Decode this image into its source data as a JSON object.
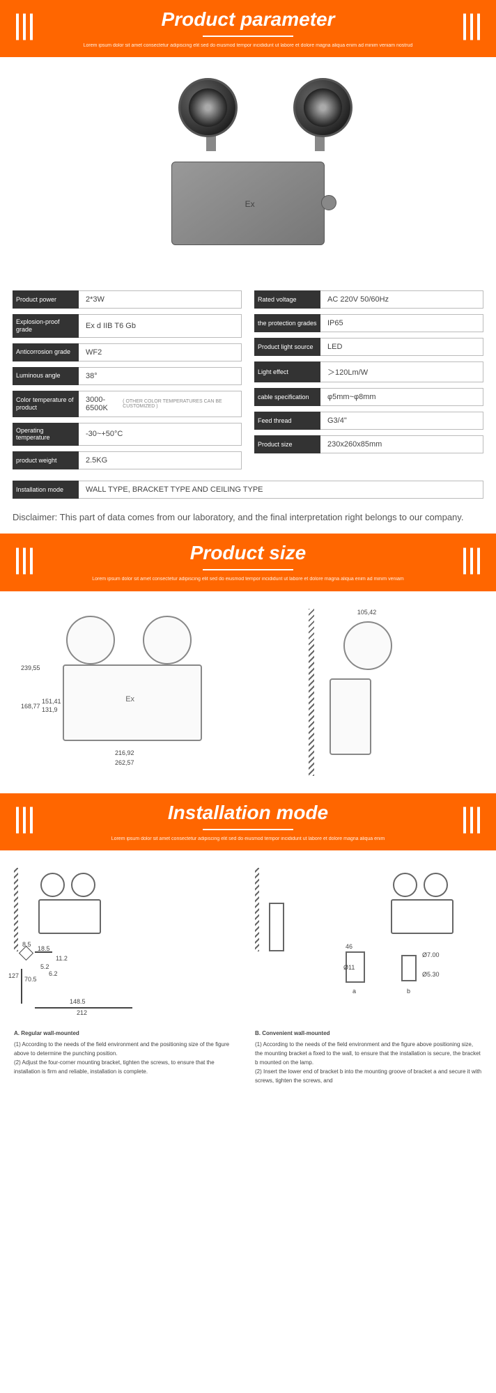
{
  "headers": {
    "parameter": {
      "title": "Product parameter",
      "subtitle": "Lorem ipsum dolor sit amet consectetur adipiscing elit sed do eiusmod tempor incididunt ut labore et dolore magna aliqua enim ad minim veniam nostrud"
    },
    "size": {
      "title": "Product size",
      "subtitle": "Lorem ipsum dolor sit amet consectetur adipiscing elit sed do eiusmod tempor incididunt ut labore et dolore magna aliqua enim ad minim veniam"
    },
    "install": {
      "title": "Installation mode",
      "subtitle": "Lorem ipsum dolor sit amet consectetur adipiscing elit sed do eiusmod tempor incididunt ut labore et dolore magna aliqua enim"
    }
  },
  "colors": {
    "accent": "#ff6600",
    "label_bg": "#333333"
  },
  "specs_left": [
    {
      "label": "Product power",
      "value": "2*3W"
    },
    {
      "label": "Explosion-proof grade",
      "value": "Ex d IIB T6 Gb"
    },
    {
      "label": "Anticorrosion grade",
      "value": "WF2"
    },
    {
      "label": "Luminous angle",
      "value": "38°"
    },
    {
      "label": "Color temperature of product",
      "value": "3000-6500K",
      "note": "( OTHER COLOR TEMPERATURES CAN BE CUSTOMIZED )"
    },
    {
      "label": "Operating temperature",
      "value": "-30~+50°C"
    },
    {
      "label": "product weight",
      "value": "2.5KG"
    }
  ],
  "specs_right": [
    {
      "label": "Rated voltage",
      "value": "AC 220V  50/60Hz"
    },
    {
      "label": "the protection grades",
      "value": "IP65"
    },
    {
      "label": "Product light source",
      "value": "LED"
    },
    {
      "label": "Light effect",
      "value": "＞120Lm/W"
    },
    {
      "label": "cable specification",
      "value": "φ5mm~φ8mm"
    },
    {
      "label": "Feed thread",
      "value": "G3/4\""
    },
    {
      "label": "Product size",
      "value": "230x260x85mm"
    }
  ],
  "install_mode": {
    "label": "Installation mode",
    "value": "WALL TYPE, BRACKET TYPE AND CEILING TYPE"
  },
  "disclaimer": "Disclaimer: This part of data comes from our laboratory, and the final interpretation right belongs to our company.",
  "dimensions": {
    "front": {
      "h_total": "239,55",
      "h_body": "168,77",
      "h_inner1": "151,41",
      "h_inner2": "131,9",
      "w_inner": "216,92",
      "w_total": "262,57"
    },
    "side": {
      "depth": "105,42"
    }
  },
  "installation": {
    "left": {
      "title": "A. Regular wall-mounted",
      "steps": [
        "(1) According to the needs of the field environment and the positioning size of the figure above to determine the punching position.",
        "(2) Adjust the four-corner mounting bracket, tighten the screws, to ensure that the installation is firm and reliable, installation is complete."
      ],
      "dims": [
        "8.5",
        "18.5",
        "11.2",
        "5.2",
        "6.2",
        "127",
        "70.5",
        "148.5",
        "212"
      ]
    },
    "right": {
      "title": "B. Convenient wall-mounted",
      "steps": [
        "(1) According to the needs of the field environment and the figure above positioning size, the mounting bracket a fixed to the wall, to ensure that the installation is secure, the bracket b mounted on the lamp.",
        "(2) Insert the lower end of bracket b into the mounting groove of bracket a and secure it with screws, tighten the screws, and"
      ],
      "dims": [
        "46",
        "Ø11",
        "Ø7.00",
        "Ø5.30",
        "a",
        "b"
      ]
    }
  }
}
